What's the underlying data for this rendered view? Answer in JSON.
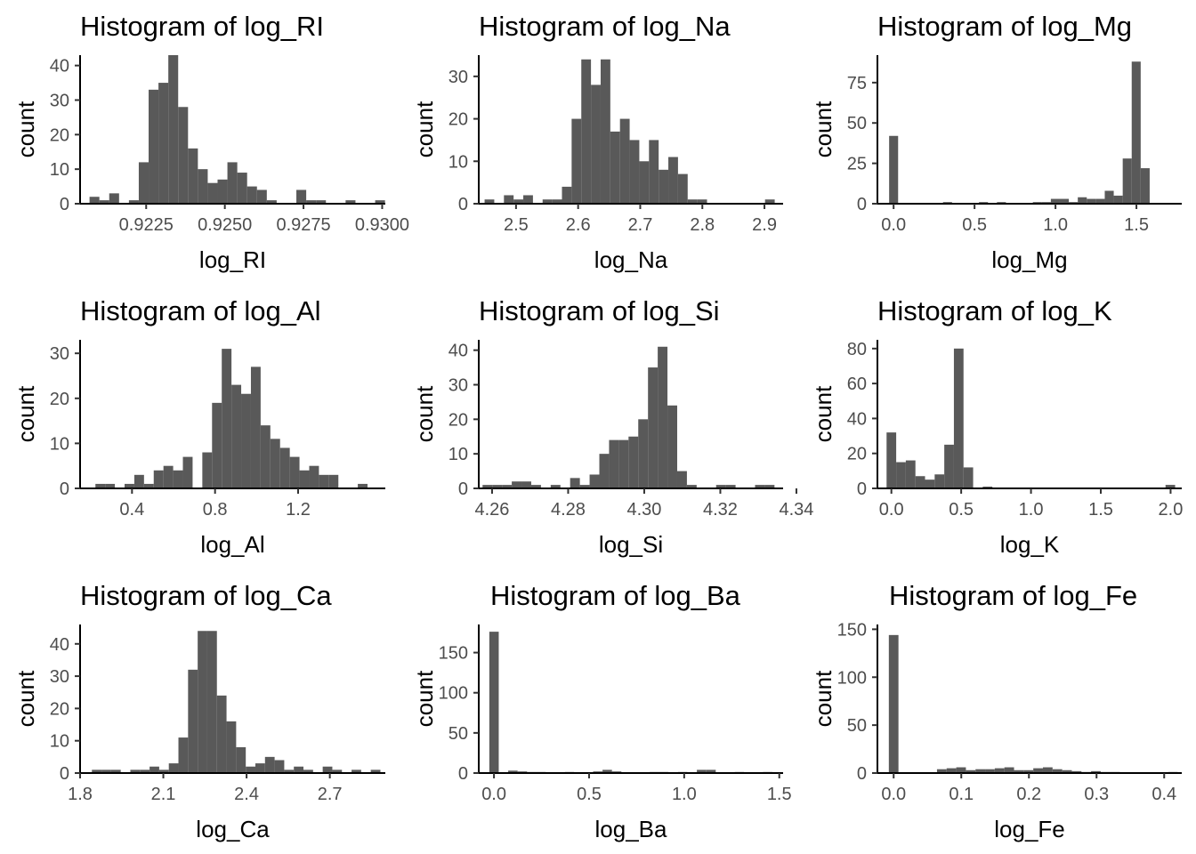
{
  "chart_data": [
    {
      "type": "bar",
      "title": "Histogram of log_RI",
      "xlabel": "log_RI",
      "ylabel": "count",
      "xlim": [
        0.9204,
        0.9301
      ],
      "ylim": [
        0,
        43
      ],
      "xticks": [
        0.9225,
        0.925,
        0.9275,
        0.93
      ],
      "xtick_labels": [
        "0.9225",
        "0.9250",
        "0.9275",
        "0.9300"
      ],
      "yticks": [
        0,
        10,
        20,
        30,
        40
      ],
      "bin_start": 0.9207,
      "bin_width": 0.000313,
      "values": [
        2,
        1,
        3,
        0,
        1,
        12,
        33,
        35,
        43,
        28,
        16,
        10,
        6,
        7,
        12,
        9,
        5,
        4,
        1,
        0,
        0,
        4,
        1,
        1,
        0,
        0,
        1,
        0,
        0,
        1
      ]
    },
    {
      "type": "bar",
      "title": "Histogram of log_Na",
      "xlabel": "log_Na",
      "ylabel": "count",
      "xlim": [
        2.44,
        2.93
      ],
      "ylim": [
        0,
        35
      ],
      "xticks": [
        2.5,
        2.6,
        2.7,
        2.8,
        2.9
      ],
      "xtick_labels": [
        "2.5",
        "2.6",
        "2.7",
        "2.8",
        "2.9"
      ],
      "yticks": [
        0,
        10,
        20,
        30
      ],
      "bin_start": 2.4494,
      "bin_width": 0.01557,
      "values": [
        1,
        0,
        2,
        1,
        2,
        0,
        1,
        1,
        4,
        20,
        34,
        28,
        34,
        17,
        20,
        15,
        10,
        15,
        8,
        11,
        7,
        1,
        1,
        0,
        0,
        0,
        0,
        0,
        0,
        1
      ]
    },
    {
      "type": "bar",
      "title": "Histogram of log_Mg",
      "xlabel": "log_Mg",
      "ylabel": "count",
      "xlim": [
        -0.1,
        1.78
      ],
      "ylim": [
        0,
        92
      ],
      "xticks": [
        0.0,
        0.5,
        1.0,
        1.5
      ],
      "xtick_labels": [
        "0.0",
        "0.5",
        "1.0",
        "1.5"
      ],
      "yticks": [
        0,
        25,
        50,
        75
      ],
      "bin_start": -0.0277,
      "bin_width": 0.0555,
      "values": [
        42,
        0,
        0,
        0,
        0,
        0,
        1,
        0,
        0,
        0,
        1,
        0,
        1,
        0,
        0,
        0,
        1,
        1,
        3,
        3,
        1,
        4,
        3,
        3,
        8,
        5,
        28,
        88,
        22,
        0
      ]
    },
    {
      "type": "bar",
      "title": "Histogram of log_Al",
      "xlabel": "log_Al",
      "ylabel": "count",
      "xlim": [
        0.15,
        1.62
      ],
      "ylim": [
        0,
        33
      ],
      "xticks": [
        0.4,
        0.8,
        1.2
      ],
      "xtick_labels": [
        "0.4",
        "0.8",
        "1.2"
      ],
      "yticks": [
        0,
        10,
        20,
        30
      ],
      "bin_start": 0.2239,
      "bin_width": 0.0468,
      "values": [
        1,
        1,
        0,
        1,
        3,
        1,
        4,
        5,
        4,
        7,
        0,
        8,
        19,
        31,
        23,
        21,
        27,
        14,
        11,
        9,
        7,
        4,
        5,
        3,
        3,
        0,
        0,
        1,
        0,
        0
      ]
    },
    {
      "type": "bar",
      "title": "Histogram of log_Si",
      "xlabel": "log_Si",
      "ylabel": "count",
      "xlim": [
        4.2565,
        4.3365
      ],
      "ylim": [
        0,
        43
      ],
      "xticks": [
        4.26,
        4.28,
        4.3,
        4.32,
        4.34
      ],
      "xtick_labels": [
        "4.26",
        "4.28",
        "4.30",
        "4.32",
        "4.34"
      ],
      "yticks": [
        0,
        10,
        20,
        30,
        40
      ],
      "bin_start": 4.2575,
      "bin_width": 0.002558,
      "values": [
        1,
        1,
        1,
        2,
        2,
        1,
        0,
        1,
        0,
        3,
        1,
        4,
        10,
        14,
        14,
        15,
        20,
        35,
        41,
        24,
        5,
        1,
        0,
        0,
        1,
        1,
        0,
        0,
        1,
        1
      ]
    },
    {
      "type": "bar",
      "title": "Histogram of log_K",
      "xlabel": "log_K",
      "ylabel": "count",
      "xlim": [
        -0.1,
        2.08
      ],
      "ylim": [
        0,
        85
      ],
      "xticks": [
        0.0,
        0.5,
        1.0,
        1.5,
        2.0
      ],
      "xtick_labels": [
        "0.0",
        "0.5",
        "1.0",
        "1.5",
        "2.0"
      ],
      "yticks": [
        0,
        20,
        40,
        60,
        80
      ],
      "bin_start": -0.0345,
      "bin_width": 0.0689,
      "values": [
        32,
        15,
        16,
        7,
        5,
        8,
        25,
        80,
        12,
        0,
        1,
        0,
        0,
        0,
        0,
        0,
        0,
        0,
        0,
        0,
        0,
        0,
        0,
        0,
        0,
        0,
        0,
        0,
        0,
        2
      ]
    },
    {
      "type": "bar",
      "title": "Histogram of log_Ca",
      "xlabel": "log_Ca",
      "ylabel": "count",
      "xlim": [
        1.8,
        2.9
      ],
      "ylim": [
        0,
        46
      ],
      "xticks": [
        1.8,
        2.1,
        2.4,
        2.7
      ],
      "xtick_labels": [
        "1.8",
        "2.1",
        "2.4",
        "2.7"
      ],
      "yticks": [
        0,
        10,
        20,
        30,
        40
      ],
      "bin_start": 1.8425,
      "bin_width": 0.03466,
      "values": [
        1,
        1,
        1,
        0,
        1,
        1,
        2,
        1,
        3,
        11,
        32,
        44,
        44,
        24,
        16,
        8,
        2,
        3,
        5,
        4,
        1,
        2,
        1,
        0,
        2,
        1,
        0,
        1,
        0,
        1
      ]
    },
    {
      "type": "bar",
      "title": "Histogram of log_Ba",
      "xlabel": "log_Ba",
      "ylabel": "count",
      "xlim": [
        -0.08,
        1.52
      ],
      "ylim": [
        0,
        185
      ],
      "xticks": [
        0.0,
        0.5,
        1.0,
        1.5
      ],
      "xtick_labels": [
        "0.0",
        "0.5",
        "1.0",
        "1.5"
      ],
      "yticks": [
        0,
        50,
        100,
        150
      ],
      "bin_start": -0.0245,
      "bin_width": 0.0496,
      "values": [
        176,
        0,
        3,
        2,
        1,
        1,
        0,
        0,
        1,
        0,
        0,
        2,
        4,
        2,
        0,
        0,
        0,
        1,
        1,
        0,
        1,
        0,
        4,
        4,
        0,
        0,
        1,
        0,
        0,
        1
      ]
    },
    {
      "type": "bar",
      "title": "Histogram of log_Fe",
      "xlabel": "log_Fe",
      "ylabel": "count",
      "xlim": [
        -0.024,
        0.426
      ],
      "ylim": [
        0,
        155
      ],
      "xticks": [
        0.0,
        0.1,
        0.2,
        0.3,
        0.4
      ],
      "xtick_labels": [
        "0.0",
        "0.1",
        "0.2",
        "0.3",
        "0.4"
      ],
      "yticks": [
        0,
        50,
        100,
        150
      ],
      "bin_start": -0.00712,
      "bin_width": 0.01424,
      "values": [
        144,
        0,
        0,
        0,
        0,
        4,
        5,
        6,
        3,
        4,
        4,
        5,
        6,
        3,
        3,
        5,
        6,
        4,
        3,
        2,
        1,
        2,
        1,
        1,
        0,
        0,
        0,
        0,
        0,
        1
      ]
    }
  ]
}
